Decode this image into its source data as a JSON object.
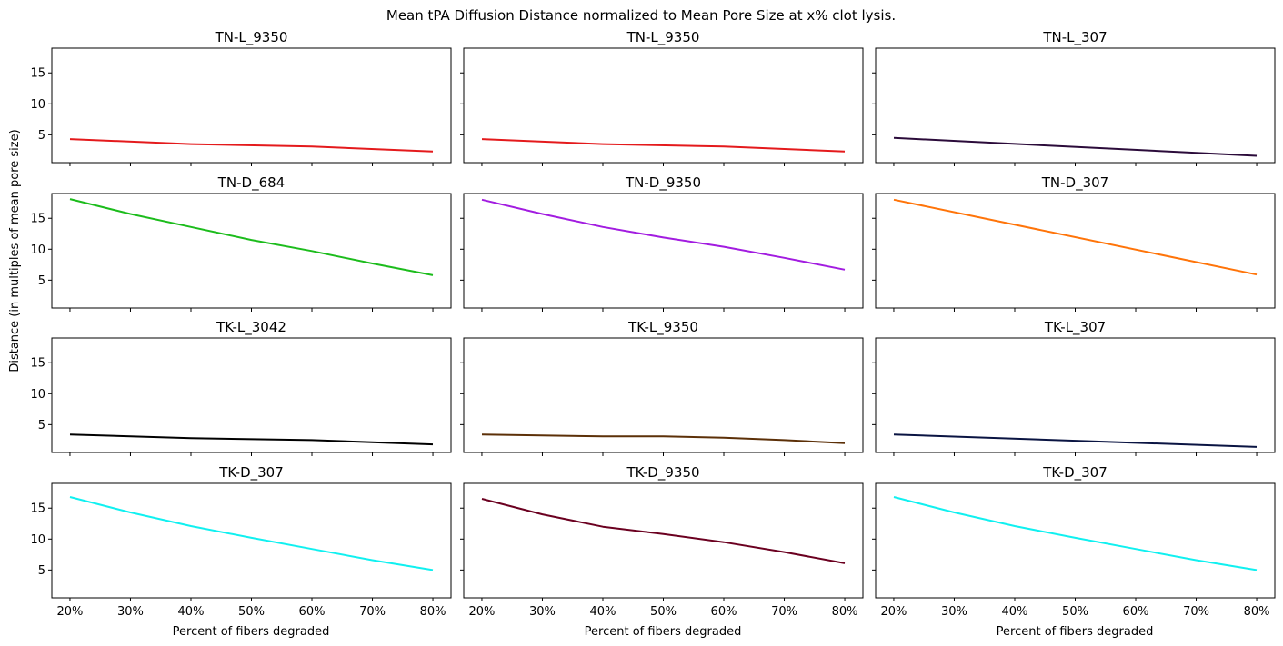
{
  "figure": {
    "suptitle": "Mean tPA Diffusion Distance normalized to Mean Pore Size at x% clot lysis.",
    "ylabel": "Distance (in multiples of mean pore size)",
    "xlabel": "Percent of fibers degraded"
  },
  "chart_data": [
    {
      "type": "line",
      "title": "TN-L_9350",
      "x": [
        20,
        40,
        60,
        80
      ],
      "xticks": [
        "20%",
        "30%",
        "40%",
        "50%",
        "60%",
        "70%",
        "80%"
      ],
      "ylim": [
        0.5,
        19
      ],
      "yticks": [
        5,
        10,
        15
      ],
      "series": [
        {
          "color": "#e41a1c",
          "values": [
            4.3,
            3.5,
            3.1,
            2.3
          ]
        }
      ]
    },
    {
      "type": "line",
      "title": "TN-L_9350",
      "x": [
        20,
        40,
        60,
        80
      ],
      "xticks": [
        "20%",
        "30%",
        "40%",
        "50%",
        "60%",
        "70%",
        "80%"
      ],
      "ylim": [
        0.5,
        19
      ],
      "yticks": [
        5,
        10,
        15
      ],
      "series": [
        {
          "color": "#e41a1c",
          "values": [
            4.3,
            3.5,
            3.1,
            2.3
          ]
        }
      ]
    },
    {
      "type": "line",
      "title": "TN-L_307",
      "x": [
        20,
        80
      ],
      "xticks": [
        "20%",
        "30%",
        "40%",
        "50%",
        "60%",
        "70%",
        "80%"
      ],
      "ylim": [
        0.5,
        19
      ],
      "yticks": [
        5,
        10,
        15
      ],
      "series": [
        {
          "color": "#2b0b3a",
          "values": [
            4.5,
            1.6
          ]
        }
      ]
    },
    {
      "type": "line",
      "title": "TN-D_684",
      "x": [
        20,
        30,
        40,
        50,
        60,
        70,
        80
      ],
      "xticks": [
        "20%",
        "30%",
        "40%",
        "50%",
        "60%",
        "70%",
        "80%"
      ],
      "ylim": [
        0.5,
        19
      ],
      "yticks": [
        5,
        10,
        15
      ],
      "series": [
        {
          "color": "#1cbc1c",
          "values": [
            18.1,
            15.7,
            13.6,
            11.5,
            9.7,
            7.7,
            5.8
          ]
        }
      ]
    },
    {
      "type": "line",
      "title": "TN-D_9350",
      "x": [
        20,
        30,
        40,
        50,
        60,
        70,
        80
      ],
      "xticks": [
        "20%",
        "30%",
        "40%",
        "50%",
        "60%",
        "70%",
        "80%"
      ],
      "ylim": [
        0.5,
        19
      ],
      "yticks": [
        5,
        10,
        15
      ],
      "series": [
        {
          "color": "#a21ce0",
          "values": [
            18.0,
            15.7,
            13.6,
            11.9,
            10.4,
            8.6,
            6.7
          ]
        }
      ]
    },
    {
      "type": "line",
      "title": "TN-D_307",
      "x": [
        20,
        80
      ],
      "xticks": [
        "20%",
        "30%",
        "40%",
        "50%",
        "60%",
        "70%",
        "80%"
      ],
      "ylim": [
        0.5,
        19
      ],
      "yticks": [
        5,
        10,
        15
      ],
      "series": [
        {
          "color": "#ff7409",
          "values": [
            18.0,
            5.9
          ]
        }
      ]
    },
    {
      "type": "line",
      "title": "TK-L_3042",
      "x": [
        20,
        40,
        60,
        80
      ],
      "xticks": [
        "20%",
        "30%",
        "40%",
        "50%",
        "60%",
        "70%",
        "80%"
      ],
      "ylim": [
        0.5,
        19
      ],
      "yticks": [
        5,
        10,
        15
      ],
      "series": [
        {
          "color": "#000000",
          "values": [
            3.4,
            2.8,
            2.5,
            1.8
          ]
        }
      ]
    },
    {
      "type": "line",
      "title": "TK-L_9350",
      "x": [
        20,
        40,
        50,
        60,
        70,
        80
      ],
      "xticks": [
        "20%",
        "30%",
        "40%",
        "50%",
        "60%",
        "70%",
        "80%"
      ],
      "ylim": [
        0.5,
        19
      ],
      "yticks": [
        5,
        10,
        15
      ],
      "series": [
        {
          "color": "#5c3008",
          "values": [
            3.4,
            3.1,
            3.1,
            2.9,
            2.5,
            2.0
          ]
        }
      ]
    },
    {
      "type": "line",
      "title": "TK-L_307",
      "x": [
        20,
        80
      ],
      "xticks": [
        "20%",
        "30%",
        "40%",
        "50%",
        "60%",
        "70%",
        "80%"
      ],
      "ylim": [
        0.5,
        19
      ],
      "yticks": [
        5,
        10,
        15
      ],
      "series": [
        {
          "color": "#0a1442",
          "values": [
            3.4,
            1.4
          ]
        }
      ]
    },
    {
      "type": "line",
      "title": "TK-D_307",
      "x": [
        20,
        30,
        40,
        50,
        60,
        70,
        80
      ],
      "xticks": [
        "20%",
        "30%",
        "40%",
        "50%",
        "60%",
        "70%",
        "80%"
      ],
      "ylim": [
        0.5,
        19
      ],
      "yticks": [
        5,
        10,
        15
      ],
      "series": [
        {
          "color": "#10f0f0",
          "values": [
            16.8,
            14.3,
            12.1,
            10.2,
            8.4,
            6.6,
            5.0
          ]
        }
      ]
    },
    {
      "type": "line",
      "title": "TK-D_9350",
      "x": [
        20,
        30,
        40,
        50,
        60,
        70,
        80
      ],
      "xticks": [
        "20%",
        "30%",
        "40%",
        "50%",
        "60%",
        "70%",
        "80%"
      ],
      "ylim": [
        0.5,
        19
      ],
      "yticks": [
        5,
        10,
        15
      ],
      "series": [
        {
          "color": "#6b0020",
          "values": [
            16.5,
            14.0,
            12.0,
            10.8,
            9.5,
            7.9,
            6.1
          ]
        }
      ]
    },
    {
      "type": "line",
      "title": "TK-D_307",
      "x": [
        20,
        30,
        40,
        50,
        60,
        70,
        80
      ],
      "xticks": [
        "20%",
        "30%",
        "40%",
        "50%",
        "60%",
        "70%",
        "80%"
      ],
      "ylim": [
        0.5,
        19
      ],
      "yticks": [
        5,
        10,
        15
      ],
      "series": [
        {
          "color": "#10f0f0",
          "values": [
            16.8,
            14.3,
            12.1,
            10.2,
            8.4,
            6.6,
            5.0
          ]
        }
      ]
    }
  ]
}
